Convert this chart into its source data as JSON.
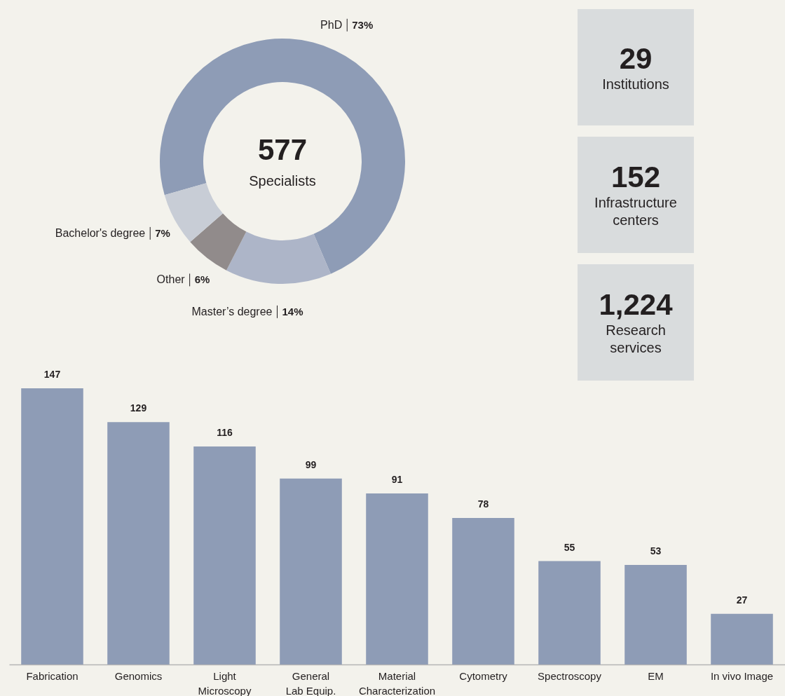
{
  "chart_data": [
    {
      "type": "donut",
      "categories": [
        "PhD",
        "Master’s degree",
        "Other",
        "Bachelor's degree"
      ],
      "values": [
        73,
        14,
        6,
        7
      ],
      "colors": [
        "#8e9cb6",
        "#adb5c8",
        "#918b8b",
        "#c8cdd6"
      ],
      "value_labels": [
        "73%",
        "14%",
        "6%",
        "7%"
      ],
      "annotations": [
        "577",
        "Specialists"
      ]
    },
    {
      "type": "other",
      "annotations": [
        "29",
        "Institutions",
        "152",
        "Infrastructure centers",
        "1,224",
        "Research services"
      ]
    },
    {
      "type": "bar",
      "categories": [
        "Fabrication",
        "Genomics",
        "Light Microscopy",
        "General Lab Equip.",
        "Material Characterization",
        "Cytometry",
        "Spectroscopy",
        "EM",
        "In vivo Image"
      ],
      "values": [
        147,
        129,
        116,
        99,
        91,
        78,
        55,
        53,
        27
      ],
      "color": "#8e9cb6",
      "data_labels": true
    }
  ]
}
